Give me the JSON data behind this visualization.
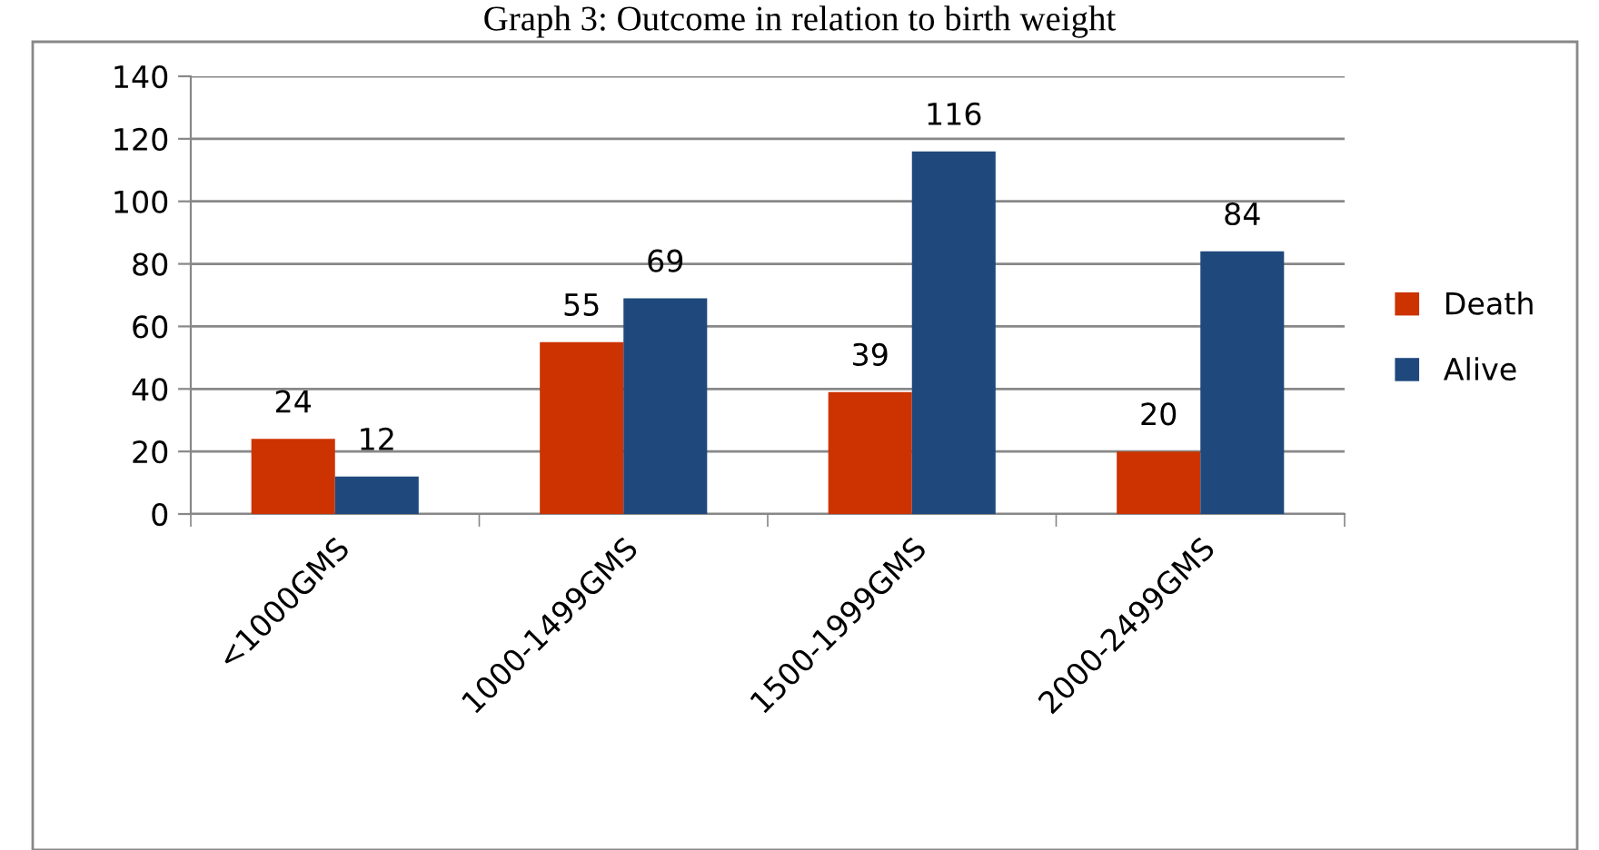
{
  "chart_data": {
    "type": "bar",
    "title": "Graph 3: Outcome in relation to birth weight",
    "categories": [
      "<1000GMS",
      "1000-1499GMS",
      "1500-1999GMS",
      "2000-2499GMS"
    ],
    "series": [
      {
        "name": "Death",
        "color": "#cc3300",
        "values": [
          24,
          55,
          39,
          20
        ]
      },
      {
        "name": "Alive",
        "color": "#1f497d",
        "values": [
          12,
          69,
          116,
          84
        ]
      }
    ],
    "ylim": [
      0,
      140
    ],
    "yticks": [
      0,
      20,
      40,
      60,
      80,
      100,
      120,
      140
    ],
    "grid": "y",
    "legend": "right",
    "data_labels": true
  }
}
